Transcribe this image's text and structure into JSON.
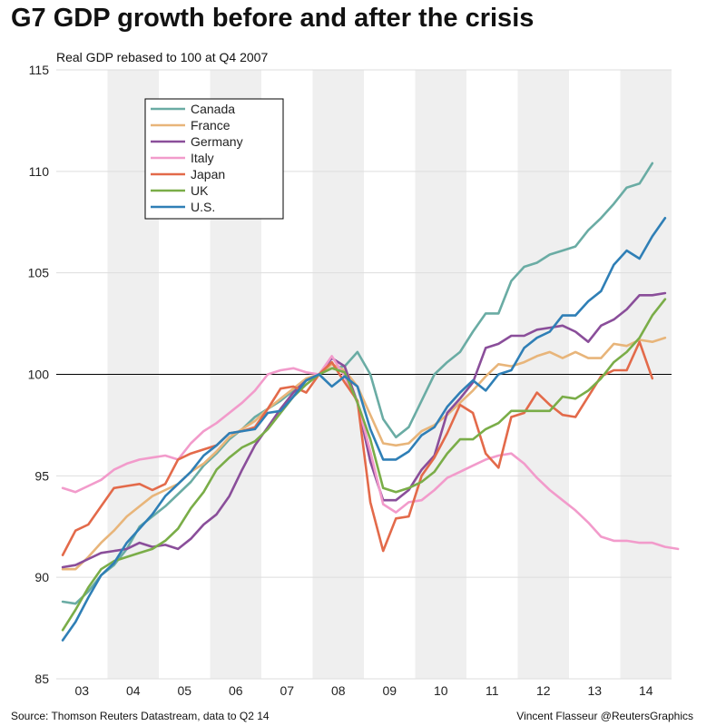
{
  "title": "G7 GDP growth before and after the crisis",
  "subtitle": "Real GDP rebased to 100 at Q4 2007",
  "source": "Source: Thomson Reuters Datastream, data to Q2 14",
  "credit": "Vincent Flasseur @ReutersGraphics",
  "chart_data": {
    "type": "line",
    "x_start": "2003 Q1",
    "x_tick_labels": [
      "03",
      "04",
      "05",
      "06",
      "07",
      "08",
      "09",
      "10",
      "11",
      "12",
      "13",
      "14"
    ],
    "y_ticks": [
      85,
      90,
      95,
      100,
      105,
      110,
      115
    ],
    "ylim": [
      85,
      115
    ],
    "reference_line": 100,
    "grid": true,
    "legend_position": "top-left",
    "series": [
      {
        "name": "Canada",
        "color": "#6aaca4",
        "values": [
          88.8,
          88.7,
          89.3,
          90.1,
          90.6,
          91.4,
          92.5,
          93.0,
          93.5,
          94.1,
          94.7,
          95.5,
          96.1,
          96.8,
          97.3,
          97.9,
          98.3,
          98.7,
          99.2,
          99.7,
          100.0,
          100.3,
          100.4,
          101.1,
          100.0,
          97.8,
          96.9,
          97.4,
          98.7,
          100.0,
          100.6,
          101.1,
          102.1,
          103.0,
          103.0,
          104.6,
          105.3,
          105.5,
          105.9,
          106.1,
          106.3,
          107.1,
          107.7,
          108.4,
          109.2,
          109.4,
          110.4
        ]
      },
      {
        "name": "France",
        "color": "#e8b57a",
        "values": [
          90.4,
          90.4,
          91.0,
          91.7,
          92.3,
          93.0,
          93.5,
          94.0,
          94.3,
          94.6,
          95.2,
          95.6,
          96.2,
          96.9,
          97.3,
          97.7,
          98.3,
          98.8,
          99.3,
          99.8,
          100.0,
          100.5,
          100.2,
          99.4,
          98.0,
          96.6,
          96.5,
          96.6,
          97.2,
          97.5,
          98.0,
          98.6,
          99.2,
          99.9,
          100.5,
          100.4,
          100.6,
          100.9,
          101.1,
          100.8,
          101.1,
          100.8,
          100.8,
          101.5,
          101.4,
          101.7,
          101.6,
          101.8
        ]
      },
      {
        "name": "Germany",
        "color": "#8a4e9a",
        "values": [
          90.5,
          90.6,
          90.9,
          91.2,
          91.3,
          91.4,
          91.7,
          91.5,
          91.6,
          91.4,
          91.9,
          92.6,
          93.1,
          94.0,
          95.3,
          96.5,
          97.4,
          98.3,
          99.1,
          99.7,
          100.0,
          100.8,
          100.4,
          98.6,
          95.7,
          93.8,
          93.8,
          94.3,
          95.3,
          96.0,
          98.1,
          98.8,
          99.6,
          101.3,
          101.5,
          101.9,
          101.9,
          102.2,
          102.3,
          102.4,
          102.1,
          101.6,
          102.4,
          102.7,
          103.2,
          103.9,
          103.9,
          104.0
        ]
      },
      {
        "name": "Italy",
        "color": "#f29bcb",
        "values": [
          94.4,
          94.2,
          94.5,
          94.8,
          95.3,
          95.6,
          95.8,
          95.9,
          96.0,
          95.8,
          96.6,
          97.2,
          97.6,
          98.1,
          98.6,
          99.2,
          100.0,
          100.2,
          100.3,
          100.1,
          100.0,
          100.9,
          99.9,
          98.6,
          96.2,
          93.6,
          93.2,
          93.7,
          93.8,
          94.3,
          94.9,
          95.2,
          95.5,
          95.8,
          96.0,
          96.1,
          95.6,
          94.9,
          94.3,
          93.8,
          93.3,
          92.7,
          92.0,
          91.8,
          91.8,
          91.7,
          91.7,
          91.5,
          91.4
        ]
      },
      {
        "name": "Japan",
        "color": "#e36a4a",
        "values": [
          91.1,
          92.3,
          92.6,
          93.5,
          94.4,
          94.5,
          94.6,
          94.3,
          94.6,
          95.8,
          96.1,
          96.3,
          96.5,
          97.1,
          97.2,
          97.4,
          98.3,
          99.3,
          99.4,
          99.1,
          100.0,
          100.6,
          99.6,
          98.7,
          93.7,
          91.3,
          92.9,
          93.0,
          95.0,
          95.9,
          97.1,
          98.5,
          98.1,
          96.1,
          95.4,
          97.9,
          98.1,
          99.1,
          98.5,
          98.0,
          97.9,
          98.9,
          99.9,
          100.2,
          100.2,
          101.6,
          99.8
        ]
      },
      {
        "name": "UK",
        "color": "#7aad48",
        "values": [
          87.4,
          88.4,
          89.5,
          90.4,
          90.8,
          91.0,
          91.2,
          91.4,
          91.8,
          92.4,
          93.4,
          94.2,
          95.3,
          95.9,
          96.4,
          96.7,
          97.3,
          98.1,
          98.9,
          99.5,
          100.0,
          100.3,
          100.1,
          98.6,
          96.8,
          94.4,
          94.2,
          94.4,
          94.7,
          95.2,
          96.1,
          96.8,
          96.8,
          97.3,
          97.6,
          98.2,
          98.2,
          98.2,
          98.2,
          98.9,
          98.8,
          99.2,
          99.8,
          100.6,
          101.1,
          101.8,
          102.9,
          103.7
        ]
      },
      {
        "name": "U.S.",
        "color": "#2f7fb6",
        "values": [
          86.9,
          87.8,
          89.0,
          90.1,
          90.7,
          91.7,
          92.4,
          93.1,
          94.0,
          94.6,
          95.2,
          96.0,
          96.5,
          97.1,
          97.2,
          97.3,
          98.1,
          98.2,
          98.9,
          99.7,
          100.0,
          99.4,
          99.9,
          99.4,
          97.3,
          95.8,
          95.8,
          96.2,
          97.0,
          97.4,
          98.4,
          99.1,
          99.7,
          99.2,
          100.0,
          100.2,
          101.3,
          101.8,
          102.1,
          102.9,
          102.9,
          103.6,
          104.1,
          105.4,
          106.1,
          105.7,
          106.8,
          107.7
        ]
      }
    ]
  }
}
